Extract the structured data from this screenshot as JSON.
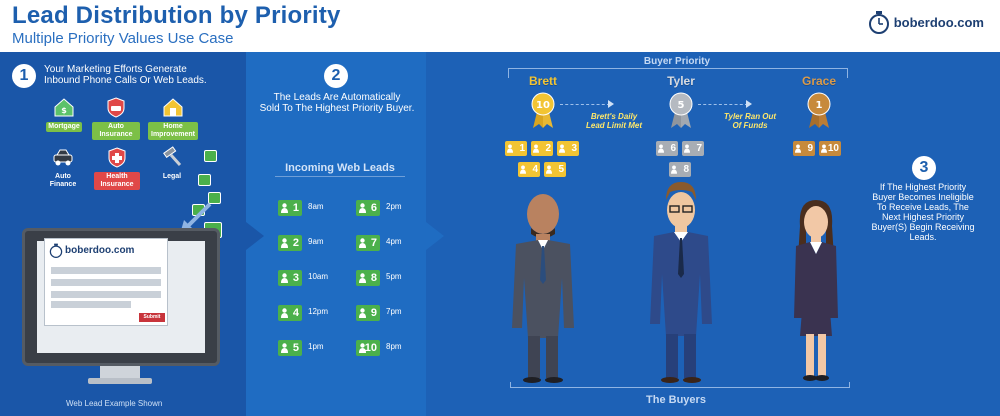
{
  "header": {
    "title": "Lead Distribution by Priority",
    "subtitle": "Multiple Priority Values Use Case",
    "logo_text": "boberdoo.com"
  },
  "step1": {
    "number": "1",
    "text_line1": "Your Marketing Efforts Generate",
    "text_line2": "Inbound Phone Calls Or Web Leads.",
    "lead_types": [
      "Mortgage",
      "Auto Insurance",
      "Home Improvement",
      "Auto Finance",
      "Health Insurance",
      "Legal"
    ],
    "form_logo_text": "boberdoo.com",
    "submit_label": "Submit",
    "caption": "Web Lead Example Shown"
  },
  "step2": {
    "number": "2",
    "text_line1": "The Leads Are Automatically",
    "text_line2": "Sold To The Highest Priority Buyer.",
    "incoming_title": "Incoming Web Leads",
    "leads": [
      {
        "num": "1",
        "time": "8am"
      },
      {
        "num": "2",
        "time": "9am"
      },
      {
        "num": "3",
        "time": "10am"
      },
      {
        "num": "4",
        "time": "12pm"
      },
      {
        "num": "5",
        "time": "1pm"
      },
      {
        "num": "6",
        "time": "2pm"
      },
      {
        "num": "7",
        "time": "4pm"
      },
      {
        "num": "8",
        "time": "5pm"
      },
      {
        "num": "9",
        "time": "7pm"
      },
      {
        "num": "10",
        "time": "8pm"
      }
    ]
  },
  "priority": {
    "title": "Buyer Priority",
    "buyers": [
      {
        "name": "Brett",
        "priority": "10",
        "leads": [
          "1",
          "2",
          "3",
          "4",
          "5"
        ]
      },
      {
        "name": "Tyler",
        "priority": "5",
        "leads": [
          "6",
          "7",
          "8"
        ]
      },
      {
        "name": "Grace",
        "priority": "1",
        "leads": [
          "9",
          "10"
        ]
      }
    ],
    "rule1_line1": "Brett's Daily",
    "rule1_line2": "Lead Limit Met",
    "rule2_line1": "Tyler Ran Out",
    "rule2_line2": "Of Funds",
    "bottom_title": "The Buyers"
  },
  "step3": {
    "number": "3",
    "text_lines": [
      "If The Highest Priority",
      "Buyer Becomes Ineligible",
      "To Receive Leads, The",
      "Next Highest Priority",
      "Buyer(S) Begin Receiving",
      "Leads."
    ]
  },
  "colors": {
    "brand_blue": "#1d5fae",
    "lead_green": "#4bb04b",
    "gold": "#f2c433",
    "silver": "#a8adb4",
    "bronze": "#c78a3c"
  }
}
